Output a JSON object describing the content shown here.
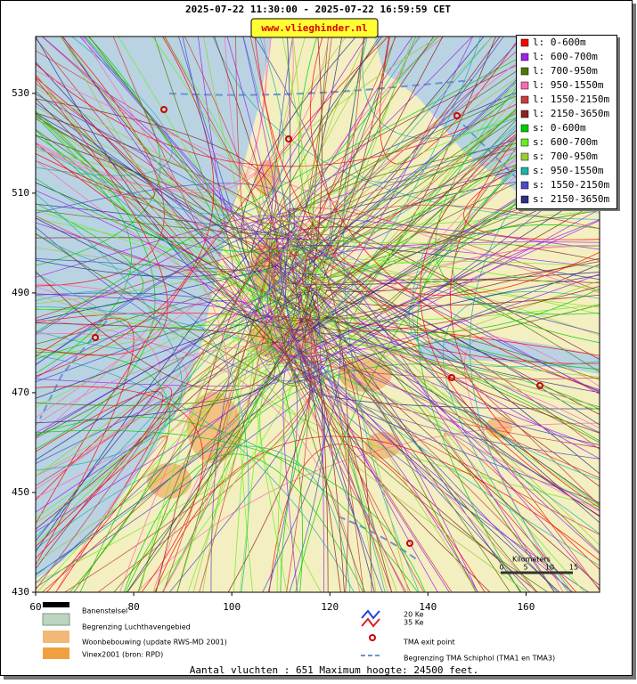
{
  "header": {
    "title": "2025-07-22 11:30:00 - 2025-07-22 16:59:59 CET",
    "site": "www.vlieghinder.nl"
  },
  "map": {
    "xlim": [
      60,
      175
    ],
    "ylim": [
      430,
      541.4
    ],
    "xticks": [
      60,
      80,
      100,
      120,
      140,
      160
    ],
    "yticks": [
      430,
      450,
      470,
      490,
      510,
      530
    ]
  },
  "legend": [
    {
      "label": "l: 0-600m",
      "color": "#ff0000"
    },
    {
      "label": "l: 600-700m",
      "color": "#a020f0"
    },
    {
      "label": "l: 700-950m",
      "color": "#4a7a00"
    },
    {
      "label": "l: 950-1550m",
      "color": "#ff69b4"
    },
    {
      "label": "l: 1550-2150m",
      "color": "#cd3a3a"
    },
    {
      "label": "l: 2150-3650m",
      "color": "#8b2323"
    },
    {
      "label": "s: 0-600m",
      "color": "#00cc00"
    },
    {
      "label": "s: 600-700m",
      "color": "#66ee22"
    },
    {
      "label": "s: 700-950m",
      "color": "#9acd32"
    },
    {
      "label": "s: 950-1550m",
      "color": "#20b2aa"
    },
    {
      "label": "s: 1550-2150m",
      "color": "#4a4ac8"
    },
    {
      "label": "s: 2150-3650m",
      "color": "#2e2e8a"
    }
  ],
  "scale": {
    "title": "Kilometers",
    "ticks": [
      0,
      5,
      10,
      15
    ]
  },
  "key": {
    "runways": "Banenstelsel",
    "airport": "Begrenzing Luchthavengebied",
    "housing": "Woonbebouwing (update RWS-MD 2001)",
    "vinex": "Vinex2001 (bron: RPD)",
    "ke20": "20 Ke",
    "ke35": "35 Ke",
    "exit": "TMA exit point",
    "tma": "Begrenzing TMA Schiphol  (TMA1 en TMA3)"
  },
  "footer": "Aantal vluchten : 651 Maximum hoogte: 24500 feet."
}
